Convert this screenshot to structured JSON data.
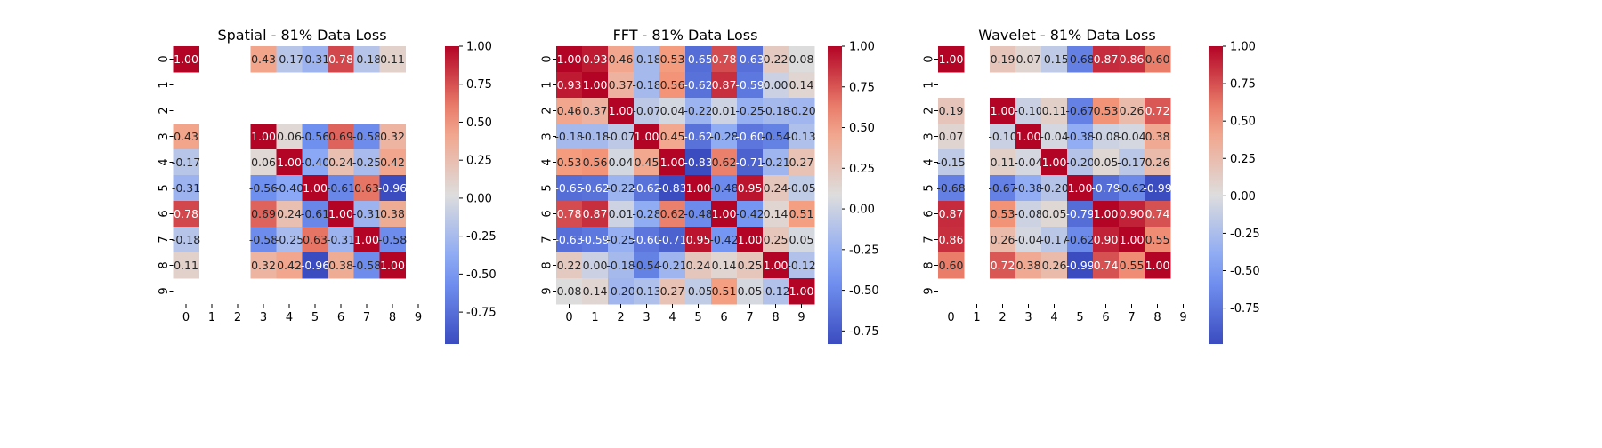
{
  "chart_data": [
    {
      "type": "heatmap",
      "title": "Spatial - 81% Data Loss",
      "x_labels": [
        "0",
        "1",
        "2",
        "3",
        "4",
        "5",
        "6",
        "7",
        "8",
        "9"
      ],
      "y_labels": [
        "0",
        "1",
        "2",
        "3",
        "4",
        "5",
        "6",
        "7",
        "8",
        "9"
      ],
      "matrix": [
        [
          1.0,
          null,
          null,
          0.43,
          -0.17,
          -0.31,
          0.78,
          -0.18,
          0.11,
          null
        ],
        [
          null,
          null,
          null,
          null,
          null,
          null,
          null,
          null,
          null,
          null
        ],
        [
          null,
          null,
          null,
          null,
          null,
          null,
          null,
          null,
          null,
          null
        ],
        [
          0.43,
          null,
          null,
          1.0,
          0.06,
          -0.56,
          0.69,
          -0.58,
          0.32,
          null
        ],
        [
          -0.17,
          null,
          null,
          0.06,
          1.0,
          -0.4,
          0.24,
          -0.25,
          0.42,
          null
        ],
        [
          -0.31,
          null,
          null,
          -0.56,
          -0.4,
          1.0,
          -0.61,
          0.63,
          -0.96,
          null
        ],
        [
          0.78,
          null,
          null,
          0.69,
          0.24,
          -0.61,
          1.0,
          -0.31,
          0.38,
          null
        ],
        [
          -0.18,
          null,
          null,
          -0.58,
          -0.25,
          0.63,
          -0.31,
          1.0,
          -0.58,
          null
        ],
        [
          0.11,
          null,
          null,
          0.32,
          0.42,
          -0.96,
          0.38,
          -0.58,
          1.0,
          null
        ],
        [
          null,
          null,
          null,
          null,
          null,
          null,
          null,
          null,
          null,
          null
        ]
      ],
      "colormap": "coolwarm",
      "vmin": -0.96,
      "vmax": 1.0,
      "colorbar_ticks": [
        "1.00",
        "0.75",
        "0.50",
        "0.25",
        "0.00",
        "-0.25",
        "-0.50",
        "-0.75"
      ]
    },
    {
      "type": "heatmap",
      "title": "FFT - 81% Data Loss",
      "x_labels": [
        "0",
        "1",
        "2",
        "3",
        "4",
        "5",
        "6",
        "7",
        "8",
        "9"
      ],
      "y_labels": [
        "0",
        "1",
        "2",
        "3",
        "4",
        "5",
        "6",
        "7",
        "8",
        "9"
      ],
      "matrix": [
        [
          1.0,
          0.93,
          0.46,
          -0.18,
          0.53,
          -0.65,
          0.78,
          -0.63,
          0.22,
          0.08
        ],
        [
          0.93,
          1.0,
          0.37,
          -0.18,
          0.56,
          -0.62,
          0.87,
          -0.59,
          0.0,
          0.14
        ],
        [
          0.46,
          0.37,
          1.0,
          -0.07,
          0.04,
          -0.22,
          0.01,
          -0.25,
          -0.18,
          -0.2
        ],
        [
          -0.18,
          -0.18,
          -0.07,
          1.0,
          0.45,
          -0.62,
          -0.28,
          -0.6,
          -0.54,
          -0.13
        ],
        [
          0.53,
          0.56,
          0.04,
          0.45,
          1.0,
          -0.83,
          0.62,
          -0.71,
          -0.21,
          0.27
        ],
        [
          -0.65,
          -0.62,
          -0.22,
          -0.62,
          -0.83,
          1.0,
          -0.48,
          0.95,
          0.24,
          -0.05
        ],
        [
          0.78,
          0.87,
          0.01,
          -0.28,
          0.62,
          -0.48,
          1.0,
          -0.42,
          0.14,
          0.51
        ],
        [
          -0.63,
          -0.59,
          -0.25,
          -0.6,
          -0.71,
          0.95,
          -0.42,
          1.0,
          0.25,
          0.05
        ],
        [
          0.22,
          0.0,
          -0.18,
          -0.54,
          -0.21,
          0.24,
          0.14,
          0.25,
          1.0,
          -0.12
        ],
        [
          0.08,
          0.14,
          -0.2,
          -0.13,
          0.27,
          -0.05,
          0.51,
          0.05,
          -0.12,
          1.0
        ]
      ],
      "colormap": "coolwarm",
      "vmin": -0.83,
      "vmax": 1.0,
      "colorbar_ticks": [
        "1.00",
        "0.75",
        "0.50",
        "0.25",
        "0.00",
        "-0.25",
        "-0.50",
        "-0.75"
      ]
    },
    {
      "type": "heatmap",
      "title": "Wavelet - 81% Data Loss",
      "x_labels": [
        "0",
        "1",
        "2",
        "3",
        "4",
        "5",
        "6",
        "7",
        "8",
        "9"
      ],
      "y_labels": [
        "0",
        "1",
        "2",
        "3",
        "4",
        "5",
        "6",
        "7",
        "8",
        "9"
      ],
      "matrix": [
        [
          1.0,
          null,
          0.19,
          0.07,
          -0.15,
          -0.68,
          0.87,
          0.86,
          0.6,
          null
        ],
        [
          null,
          null,
          null,
          null,
          null,
          null,
          null,
          null,
          null,
          null
        ],
        [
          0.19,
          null,
          1.0,
          -0.1,
          0.11,
          -0.67,
          0.53,
          0.26,
          0.72,
          null
        ],
        [
          0.07,
          null,
          -0.1,
          1.0,
          -0.04,
          -0.38,
          -0.08,
          -0.04,
          0.38,
          null
        ],
        [
          -0.15,
          null,
          0.11,
          -0.04,
          1.0,
          -0.2,
          0.05,
          -0.17,
          0.26,
          null
        ],
        [
          -0.68,
          null,
          -0.67,
          -0.38,
          -0.2,
          1.0,
          -0.79,
          -0.62,
          -0.99,
          null
        ],
        [
          0.87,
          null,
          0.53,
          -0.08,
          0.05,
          -0.79,
          1.0,
          0.9,
          0.74,
          null
        ],
        [
          0.86,
          null,
          0.26,
          -0.04,
          -0.17,
          -0.62,
          0.9,
          1.0,
          0.55,
          null
        ],
        [
          0.6,
          null,
          0.72,
          0.38,
          0.26,
          -0.99,
          0.74,
          0.55,
          1.0,
          null
        ],
        [
          null,
          null,
          null,
          null,
          null,
          null,
          null,
          null,
          null,
          null
        ]
      ],
      "colormap": "coolwarm",
      "vmin": -0.99,
      "vmax": 1.0,
      "colorbar_ticks": [
        "1.00",
        "0.75",
        "0.50",
        "0.25",
        "0.00",
        "-0.25",
        "-0.50",
        "-0.75"
      ]
    }
  ]
}
